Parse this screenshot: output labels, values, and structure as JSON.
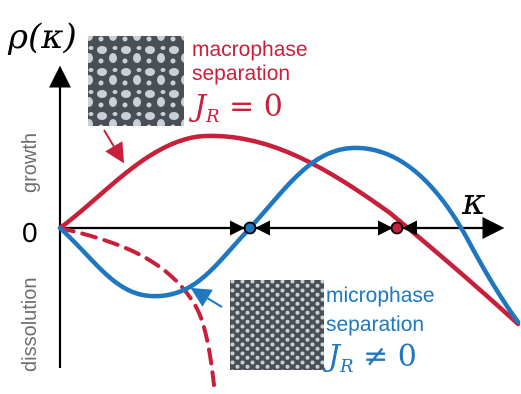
{
  "labels": {
    "y_axis_label": "ρ(κ)",
    "x_axis_label": "κ",
    "zero": "0",
    "growth": "growth",
    "dissolution": "dissolution",
    "macro_line1": "macrophase",
    "macro_line2": "separation",
    "macro_j": "J",
    "macro_sub": "R",
    "macro_eq": " = 0",
    "micro_line1": "microphase",
    "micro_line2": "separation",
    "micro_j": "J",
    "micro_sub": "R",
    "micro_eq": " ≠ 0"
  },
  "colors": {
    "macro": "#c8203a",
    "micro": "#1f77c0",
    "axis": "#000000",
    "muted_text": "#6f6f6f",
    "pattern_bg": "#4a4f56",
    "pattern_dot": "#c9d1d6"
  },
  "curves": {
    "macro": "growth for small κ, peak, then decays to negative (solid red)",
    "micro": "negative for small κ, crosses zero, peak, then decays (solid blue)",
    "dashed": "red dashed curve diving down"
  },
  "fixed_points": [
    {
      "name": "unstable-left",
      "color": "micro"
    },
    {
      "name": "stable-right",
      "color": "macro"
    }
  ]
}
